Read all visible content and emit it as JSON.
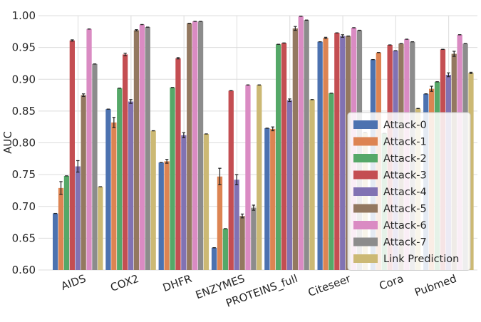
{
  "chart_data": {
    "type": "bar",
    "title": "",
    "xlabel": "",
    "ylabel": "AUC",
    "ylim": [
      0.6,
      1.0
    ],
    "yticks": [
      "0.60",
      "0.65",
      "0.70",
      "0.75",
      "0.80",
      "0.85",
      "0.90",
      "0.95",
      "1.00"
    ],
    "grid": true,
    "legend_position": "center-right",
    "error_bars": true,
    "categories": [
      "AIDS",
      "COX2",
      "DHFR",
      "ENZYMES",
      "PROTEINS_full",
      "Citeseer",
      "Cora",
      "Pubmed"
    ],
    "series": [
      {
        "name": "Attack-0",
        "color": "#4c72b0",
        "values": [
          0.689,
          0.853,
          0.769,
          0.635,
          0.823,
          0.959,
          0.931,
          0.877
        ],
        "errors": [
          0.0,
          0.0,
          0.0,
          0.0,
          0.0,
          0.0,
          0.0,
          0.0
        ]
      },
      {
        "name": "Attack-1",
        "color": "#dd8452",
        "values": [
          0.729,
          0.832,
          0.771,
          0.747,
          0.822,
          0.965,
          0.942,
          0.885
        ],
        "errors": [
          0.01,
          0.008,
          0.003,
          0.013,
          0.003,
          0.001,
          0.0,
          0.004
        ]
      },
      {
        "name": "Attack-2",
        "color": "#55a868",
        "values": [
          0.748,
          0.886,
          0.887,
          0.665,
          0.955,
          0.878,
          0.815,
          0.896
        ],
        "errors": [
          0.0,
          0.0,
          0.0,
          0.0,
          0.0,
          0.0,
          0.0,
          0.0
        ]
      },
      {
        "name": "Attack-3",
        "color": "#c44e52",
        "values": [
          0.961,
          0.939,
          0.933,
          0.882,
          0.957,
          0.973,
          0.954,
          0.947
        ],
        "errors": [
          0.001,
          0.002,
          0.001,
          0.0,
          0.0,
          0.0,
          0.0,
          0.0
        ]
      },
      {
        "name": "Attack-4",
        "color": "#8172b3",
        "values": [
          0.763,
          0.865,
          0.812,
          0.742,
          0.867,
          0.968,
          0.945,
          0.907
        ],
        "errors": [
          0.009,
          0.003,
          0.004,
          0.008,
          0.002,
          0.002,
          0.0,
          0.003
        ]
      },
      {
        "name": "Attack-5",
        "color": "#937860",
        "values": [
          0.875,
          0.977,
          0.988,
          0.685,
          0.98,
          0.968,
          0.956,
          0.94
        ],
        "errors": [
          0.002,
          0.001,
          0.0,
          0.003,
          0.003,
          0.0,
          0.0,
          0.004
        ]
      },
      {
        "name": "Attack-6",
        "color": "#da8bc3",
        "values": [
          0.979,
          0.986,
          0.991,
          0.891,
          0.999,
          0.981,
          0.963,
          0.97
        ],
        "errors": [
          0.0,
          0.0,
          0.0,
          0.0,
          0.0,
          0.0,
          0.0,
          0.0
        ]
      },
      {
        "name": "Attack-7",
        "color": "#8c8c8c",
        "values": [
          0.924,
          0.982,
          0.991,
          0.698,
          0.993,
          0.977,
          0.959,
          0.956
        ],
        "errors": [
          0.0,
          0.0,
          0.0,
          0.004,
          0.0,
          0.0,
          0.0,
          0.0
        ]
      },
      {
        "name": "Link Prediction",
        "color": "#ccb974",
        "values": [
          0.731,
          0.819,
          0.814,
          0.891,
          0.868,
          0.816,
          0.854,
          0.91
        ],
        "errors": [
          0.0,
          0.0,
          0.0,
          0.0,
          0.0,
          0.0,
          0.0,
          0.001
        ]
      }
    ]
  }
}
